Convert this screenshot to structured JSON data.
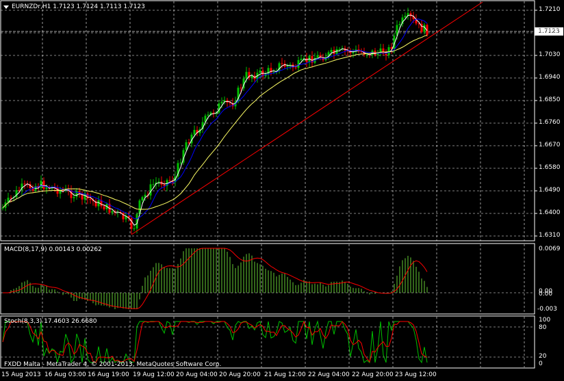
{
  "symbol_header": "EURNZDr,H1  1.7123 1.7124 1.7113 1.7123",
  "current_price": "1.7123",
  "price_axis": [
    "1.7210",
    "1.7120",
    "1.7030",
    "1.6940",
    "1.6850",
    "1.6760",
    "1.6670",
    "1.6580",
    "1.6490",
    "1.6400",
    "1.6310"
  ],
  "macd": {
    "header": "MACD(8,17,9) 0.00143 0.00262",
    "axis": [
      "0.0069",
      "0.00",
      "0.00",
      "-0.003"
    ]
  },
  "stoch": {
    "header": "Stoch(8,3,3) 17.4603 26.6680",
    "axis": [
      "100",
      "80",
      "20",
      "0"
    ]
  },
  "footer": "FXDD Malta - MetaTrader 4, © 2001-2013, MetaQuotes Software Corp.",
  "time_axis": [
    "15 Aug 2013",
    "16 Aug 03:00",
    "16 Aug 19:00",
    "19 Aug 12:00",
    "20 Aug 04:00",
    "20 Aug 20:00",
    "21 Aug 12:00",
    "22 Aug 04:00",
    "22 Aug 20:00",
    "23 Aug 12:00"
  ],
  "colors": {
    "bull": "#00c000",
    "bear": "#ff0000",
    "ma_fast": "#ffffff",
    "ma_mid": "#0000ff",
    "ma_slow": "#ffff66",
    "trend": "#ff0000",
    "grid": "#ffffff",
    "macd_hist": "#66cc33",
    "macd_signal": "#ff0000"
  }
}
